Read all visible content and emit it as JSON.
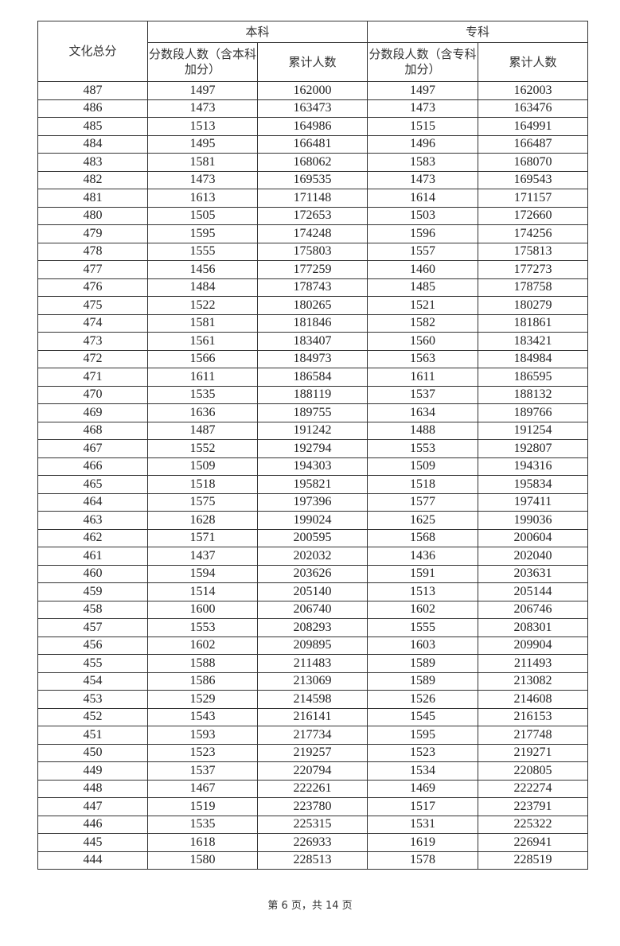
{
  "header": {
    "score_col": "文化总分",
    "groups": [
      "本科",
      "专科"
    ],
    "bk_count": "分数段人数（含本科加分）",
    "bk_cum": "累计人数",
    "zk_count": "分数段人数（含专科加分）",
    "zk_cum": "累计人数"
  },
  "rows": [
    [
      "487",
      "1497",
      "162000",
      "1497",
      "162003"
    ],
    [
      "486",
      "1473",
      "163473",
      "1473",
      "163476"
    ],
    [
      "485",
      "1513",
      "164986",
      "1515",
      "164991"
    ],
    [
      "484",
      "1495",
      "166481",
      "1496",
      "166487"
    ],
    [
      "483",
      "1581",
      "168062",
      "1583",
      "168070"
    ],
    [
      "482",
      "1473",
      "169535",
      "1473",
      "169543"
    ],
    [
      "481",
      "1613",
      "171148",
      "1614",
      "171157"
    ],
    [
      "480",
      "1505",
      "172653",
      "1503",
      "172660"
    ],
    [
      "479",
      "1595",
      "174248",
      "1596",
      "174256"
    ],
    [
      "478",
      "1555",
      "175803",
      "1557",
      "175813"
    ],
    [
      "477",
      "1456",
      "177259",
      "1460",
      "177273"
    ],
    [
      "476",
      "1484",
      "178743",
      "1485",
      "178758"
    ],
    [
      "475",
      "1522",
      "180265",
      "1521",
      "180279"
    ],
    [
      "474",
      "1581",
      "181846",
      "1582",
      "181861"
    ],
    [
      "473",
      "1561",
      "183407",
      "1560",
      "183421"
    ],
    [
      "472",
      "1566",
      "184973",
      "1563",
      "184984"
    ],
    [
      "471",
      "1611",
      "186584",
      "1611",
      "186595"
    ],
    [
      "470",
      "1535",
      "188119",
      "1537",
      "188132"
    ],
    [
      "469",
      "1636",
      "189755",
      "1634",
      "189766"
    ],
    [
      "468",
      "1487",
      "191242",
      "1488",
      "191254"
    ],
    [
      "467",
      "1552",
      "192794",
      "1553",
      "192807"
    ],
    [
      "466",
      "1509",
      "194303",
      "1509",
      "194316"
    ],
    [
      "465",
      "1518",
      "195821",
      "1518",
      "195834"
    ],
    [
      "464",
      "1575",
      "197396",
      "1577",
      "197411"
    ],
    [
      "463",
      "1628",
      "199024",
      "1625",
      "199036"
    ],
    [
      "462",
      "1571",
      "200595",
      "1568",
      "200604"
    ],
    [
      "461",
      "1437",
      "202032",
      "1436",
      "202040"
    ],
    [
      "460",
      "1594",
      "203626",
      "1591",
      "203631"
    ],
    [
      "459",
      "1514",
      "205140",
      "1513",
      "205144"
    ],
    [
      "458",
      "1600",
      "206740",
      "1602",
      "206746"
    ],
    [
      "457",
      "1553",
      "208293",
      "1555",
      "208301"
    ],
    [
      "456",
      "1602",
      "209895",
      "1603",
      "209904"
    ],
    [
      "455",
      "1588",
      "211483",
      "1589",
      "211493"
    ],
    [
      "454",
      "1586",
      "213069",
      "1589",
      "213082"
    ],
    [
      "453",
      "1529",
      "214598",
      "1526",
      "214608"
    ],
    [
      "452",
      "1543",
      "216141",
      "1545",
      "216153"
    ],
    [
      "451",
      "1593",
      "217734",
      "1595",
      "217748"
    ],
    [
      "450",
      "1523",
      "219257",
      "1523",
      "219271"
    ],
    [
      "449",
      "1537",
      "220794",
      "1534",
      "220805"
    ],
    [
      "448",
      "1467",
      "222261",
      "1469",
      "222274"
    ],
    [
      "447",
      "1519",
      "223780",
      "1517",
      "223791"
    ],
    [
      "446",
      "1535",
      "225315",
      "1531",
      "225322"
    ],
    [
      "445",
      "1618",
      "226933",
      "1619",
      "226941"
    ],
    [
      "444",
      "1580",
      "228513",
      "1578",
      "228519"
    ]
  ],
  "footer": "第 6 页，共 14 页"
}
